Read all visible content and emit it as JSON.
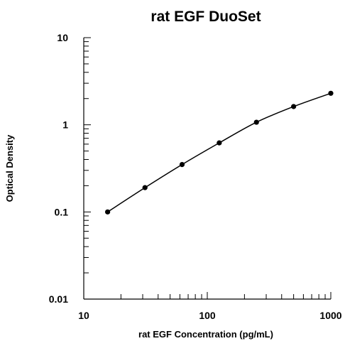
{
  "chart_data": {
    "type": "line",
    "title": "rat EGF DuoSet",
    "xlabel": "rat EGF Concentration (pg/mL)",
    "ylabel": "Optical Density",
    "x_scale": "log",
    "y_scale": "log",
    "xlim": [
      10,
      1000
    ],
    "ylim": [
      0.01,
      10
    ],
    "x_ticks": [
      "10",
      "100",
      "1000"
    ],
    "y_ticks": [
      "0.01",
      "0.1",
      "1",
      "10"
    ],
    "grid": false,
    "series": [
      {
        "x": [
          15.6,
          31.3,
          62.5,
          125,
          250,
          500,
          1000
        ],
        "y": [
          0.1,
          0.19,
          0.35,
          0.62,
          1.07,
          1.62,
          2.3
        ]
      }
    ]
  }
}
